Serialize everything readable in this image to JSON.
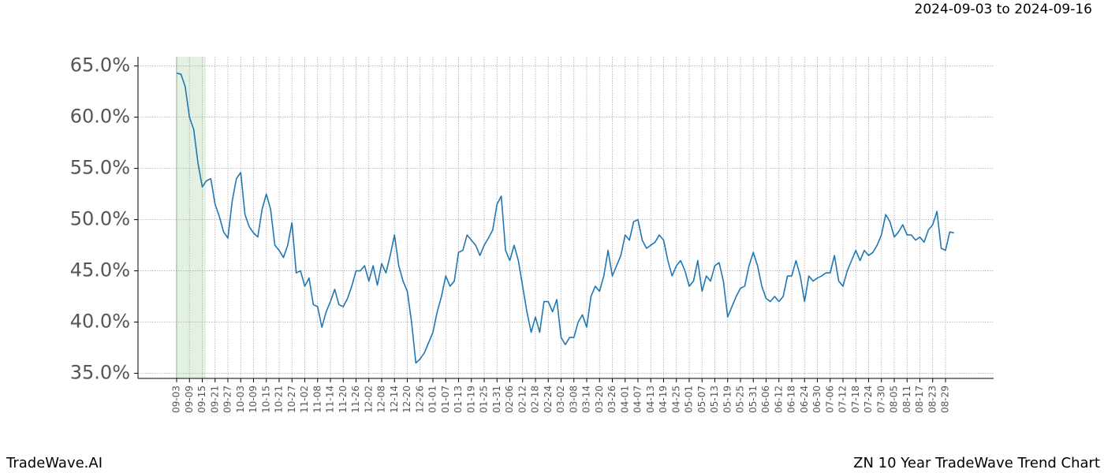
{
  "chart_data": {
    "type": "line",
    "title": "2024-09-03 to 2024-09-16",
    "footer_left": "TradeWave.AI",
    "footer_right": "ZN 10 Year TradeWave Trend Chart",
    "categories": [
      "09-03",
      null,
      null,
      "09-09",
      null,
      null,
      "09-15",
      null,
      null,
      "09-21",
      null,
      null,
      "09-27",
      null,
      null,
      "10-03",
      null,
      null,
      "10-09",
      null,
      null,
      "10-15",
      null,
      null,
      "10-21",
      null,
      null,
      "10-27",
      null,
      null,
      "11-02",
      null,
      null,
      "11-08",
      null,
      null,
      "11-14",
      null,
      null,
      "11-20",
      null,
      null,
      "11-26",
      null,
      null,
      "12-02",
      null,
      null,
      "12-08",
      null,
      null,
      "12-14",
      null,
      null,
      "12-20",
      null,
      null,
      "12-26",
      null,
      null,
      "01-01",
      null,
      null,
      "01-07",
      null,
      null,
      "01-13",
      null,
      null,
      "01-19",
      null,
      null,
      "01-25",
      null,
      null,
      "01-31",
      null,
      null,
      "02-06",
      null,
      null,
      "02-12",
      null,
      null,
      "02-18",
      null,
      null,
      "02-24",
      null,
      null,
      "03-02",
      null,
      null,
      "03-08",
      null,
      null,
      "03-14",
      null,
      null,
      "03-20",
      null,
      null,
      "03-26",
      null,
      null,
      "04-01",
      null,
      null,
      "04-07",
      null,
      null,
      "04-13",
      null,
      null,
      "04-19",
      null,
      null,
      "04-25",
      null,
      null,
      "05-01",
      null,
      null,
      "05-07",
      null,
      null,
      "05-13",
      null,
      null,
      "05-19",
      null,
      null,
      "05-25",
      null,
      null,
      "05-31",
      null,
      null,
      "06-06",
      null,
      null,
      "06-12",
      null,
      null,
      "06-18",
      null,
      null,
      "06-24",
      null,
      null,
      "06-30",
      null,
      null,
      "07-06",
      null,
      null,
      "07-12",
      null,
      null,
      "07-18",
      null,
      null,
      "07-24",
      null,
      null,
      "07-30",
      null,
      null,
      "08-05",
      null,
      null,
      "08-11",
      null,
      null,
      "08-17",
      null,
      null,
      "08-23",
      null,
      null,
      "08-29",
      null,
      null
    ],
    "values": [
      64.3,
      64.2,
      63.0,
      60.0,
      58.8,
      55.5,
      53.2,
      53.8,
      54.0,
      51.5,
      50.3,
      48.8,
      48.2,
      51.8,
      54.0,
      54.6,
      50.5,
      49.3,
      48.7,
      48.3,
      51.0,
      52.5,
      51.0,
      47.5,
      47.0,
      46.3,
      47.5,
      49.7,
      44.8,
      45.0,
      43.5,
      44.3,
      41.7,
      41.5,
      39.5,
      41.0,
      42.0,
      43.2,
      41.7,
      41.5,
      42.3,
      43.5,
      45.0,
      45.0,
      45.5,
      44.0,
      45.5,
      43.6,
      45.7,
      44.8,
      46.5,
      48.5,
      45.5,
      44.0,
      43.0,
      40.0,
      36.0,
      36.4,
      37.0,
      38.0,
      39.0,
      41.0,
      42.5,
      44.5,
      43.5,
      44.0,
      46.8,
      47.0,
      48.5,
      48.0,
      47.5,
      46.5,
      47.5,
      48.2,
      49.0,
      51.5,
      52.3,
      47.0,
      46.0,
      47.5,
      46.0,
      43.5,
      41.0,
      39.0,
      40.5,
      39.0,
      42.0,
      42.0,
      41.0,
      42.2,
      38.5,
      37.8,
      38.5,
      38.5,
      40.0,
      40.7,
      39.5,
      42.5,
      43.5,
      43.0,
      44.5,
      47.0,
      44.5,
      45.5,
      46.5,
      48.5,
      48.0,
      49.8,
      50.0,
      48.0,
      47.2,
      47.5,
      47.8,
      48.5,
      48.0,
      46.0,
      44.5,
      45.5,
      46.0,
      45.0,
      43.5,
      44.0,
      46.0,
      43.0,
      44.5,
      44.0,
      45.5,
      45.8,
      44.0,
      40.5,
      41.5,
      42.5,
      43.3,
      43.5,
      45.5,
      46.8,
      45.5,
      43.5,
      42.3,
      42.0,
      42.5,
      42.0,
      42.5,
      44.5,
      44.5,
      46.0,
      44.5,
      42.0,
      44.5,
      44.0,
      44.3,
      44.5,
      44.8,
      44.8,
      46.5,
      44.0,
      43.5,
      45.0,
      46.0,
      47.0,
      46.0,
      47.0,
      46.5,
      46.8,
      47.5,
      48.5,
      50.5,
      49.8,
      48.3,
      48.8,
      49.5,
      48.5,
      48.5,
      48.0,
      48.3,
      47.8,
      49.0,
      49.5,
      50.8,
      47.2,
      47.0,
      48.8,
      48.7
    ],
    "color": "#1f77b4",
    "ylim": [
      34.5,
      65.9
    ],
    "yticks": [
      {
        "value": 35,
        "label": "35.0%"
      },
      {
        "value": 40,
        "label": "40.0%"
      },
      {
        "value": 45,
        "label": "45.0%"
      },
      {
        "value": 50,
        "label": "50.0%"
      },
      {
        "value": 55,
        "label": "55.0%"
      },
      {
        "value": 60,
        "label": "60.0%"
      },
      {
        "value": 65,
        "label": "65.0%"
      }
    ],
    "grid": true
  }
}
